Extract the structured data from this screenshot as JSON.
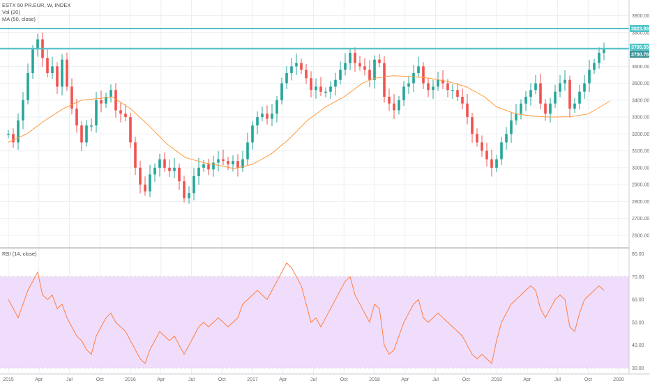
{
  "legend": {
    "title": "ESTX 50 PR.EUR, W, INDEX",
    "vol": "Vol (20)",
    "ma": "MA (50, close)",
    "rsi": "RSI (14, close)"
  },
  "colors": {
    "up": "#26a69a",
    "down": "#ef5350",
    "ma": "#ff9a3c",
    "rsi": "#ff7f3f",
    "hline": "#4fc3c8",
    "rsi_band": "#f0ddfb",
    "grid": "#eceff2"
  },
  "price_levels": {
    "resistance_top": {
      "value": 3823.93,
      "label": "3823.93"
    },
    "resistance_mid": {
      "value": 3705.55,
      "label": "3705.55"
    },
    "last_close": {
      "value": 3700.78,
      "label": "3700.78"
    }
  },
  "chart_data": [
    {
      "type": "candlestick",
      "title": "ESTX 50 PR.EUR, W, INDEX",
      "ylim": [
        2550,
        3960
      ],
      "yticks": [
        "3900.00",
        "3800.00",
        "3700.00",
        "3600.00",
        "3500.00",
        "3400.00",
        "3300.00",
        "3200.00",
        "3100.00",
        "3000.00",
        "2900.00",
        "2800.00",
        "2700.00",
        "2600.00"
      ],
      "xticks": [
        "2015",
        "Apr",
        "Jul",
        "Oct",
        "2016",
        "Apr",
        "Jul",
        "Oct",
        "2017",
        "Apr",
        "Jul",
        "Oct",
        "2018",
        "Apr",
        "Jul",
        "Oct",
        "2019",
        "Apr",
        "Jul",
        "Oct",
        "2020"
      ],
      "x_range": [
        "2015-01",
        "2020-01"
      ],
      "series": [
        {
          "name": "MA (50, close)",
          "points": [
            [
              2015.0,
              3150
            ],
            [
              2015.15,
              3200
            ],
            [
              2015.3,
              3280
            ],
            [
              2015.45,
              3350
            ],
            [
              2015.6,
              3400
            ],
            [
              2015.75,
              3410
            ],
            [
              2015.85,
              3420
            ],
            [
              2016.0,
              3350
            ],
            [
              2016.15,
              3250
            ],
            [
              2016.3,
              3140
            ],
            [
              2016.45,
              3060
            ],
            [
              2016.6,
              3030
            ],
            [
              2016.75,
              3010
            ],
            [
              2016.85,
              2995
            ],
            [
              2017.0,
              3020
            ],
            [
              2017.15,
              3080
            ],
            [
              2017.3,
              3170
            ],
            [
              2017.45,
              3280
            ],
            [
              2017.6,
              3360
            ],
            [
              2017.75,
              3420
            ],
            [
              2017.9,
              3500
            ],
            [
              2018.0,
              3530
            ],
            [
              2018.15,
              3545
            ],
            [
              2018.3,
              3540
            ],
            [
              2018.45,
              3530
            ],
            [
              2018.6,
              3510
            ],
            [
              2018.75,
              3480
            ],
            [
              2018.9,
              3420
            ],
            [
              2019.0,
              3360
            ],
            [
              2019.15,
              3320
            ],
            [
              2019.3,
              3305
            ],
            [
              2019.45,
              3300
            ],
            [
              2019.6,
              3302
            ],
            [
              2019.75,
              3318
            ],
            [
              2019.85,
              3360
            ],
            [
              2019.93,
              3395
            ]
          ]
        }
      ],
      "candles_anchor_close": [
        [
          2015.0,
          3200
        ],
        [
          2015.04,
          3150
        ],
        [
          2015.08,
          3280
        ],
        [
          2015.12,
          3400
        ],
        [
          2015.16,
          3560
        ],
        [
          2015.2,
          3700
        ],
        [
          2015.24,
          3760
        ],
        [
          2015.28,
          3650
        ],
        [
          2015.32,
          3560
        ],
        [
          2015.36,
          3600
        ],
        [
          2015.4,
          3480
        ],
        [
          2015.44,
          3640
        ],
        [
          2015.48,
          3480
        ],
        [
          2015.52,
          3350
        ],
        [
          2015.56,
          3250
        ],
        [
          2015.6,
          3150
        ],
        [
          2015.64,
          3250
        ],
        [
          2015.68,
          3250
        ],
        [
          2015.72,
          3400
        ],
        [
          2015.76,
          3380
        ],
        [
          2015.8,
          3420
        ],
        [
          2015.84,
          3460
        ],
        [
          2015.88,
          3340
        ],
        [
          2015.92,
          3320
        ],
        [
          2015.96,
          3300
        ],
        [
          2016.0,
          3150
        ],
        [
          2016.04,
          3000
        ],
        [
          2016.08,
          2900
        ],
        [
          2016.12,
          2860
        ],
        [
          2016.16,
          2960
        ],
        [
          2016.2,
          3000
        ],
        [
          2016.24,
          3050
        ],
        [
          2016.28,
          3000
        ],
        [
          2016.32,
          2980
        ],
        [
          2016.36,
          3000
        ],
        [
          2016.4,
          2920
        ],
        [
          2016.44,
          2820
        ],
        [
          2016.48,
          2850
        ],
        [
          2016.52,
          2950
        ],
        [
          2016.56,
          3000
        ],
        [
          2016.6,
          3020
        ],
        [
          2016.64,
          2990
        ],
        [
          2016.68,
          3030
        ],
        [
          2016.72,
          3050
        ],
        [
          2016.76,
          3040
        ],
        [
          2016.8,
          3020
        ],
        [
          2016.84,
          3040
        ],
        [
          2016.88,
          3000
        ],
        [
          2016.92,
          3050
        ],
        [
          2016.96,
          3150
        ],
        [
          2017.0,
          3250
        ],
        [
          2017.04,
          3300
        ],
        [
          2017.08,
          3320
        ],
        [
          2017.12,
          3290
        ],
        [
          2017.16,
          3320
        ],
        [
          2017.2,
          3400
        ],
        [
          2017.24,
          3500
        ],
        [
          2017.28,
          3560
        ],
        [
          2017.32,
          3600
        ],
        [
          2017.36,
          3620
        ],
        [
          2017.4,
          3580
        ],
        [
          2017.44,
          3530
        ],
        [
          2017.48,
          3460
        ],
        [
          2017.52,
          3480
        ],
        [
          2017.56,
          3450
        ],
        [
          2017.6,
          3450
        ],
        [
          2017.64,
          3480
        ],
        [
          2017.68,
          3520
        ],
        [
          2017.72,
          3580
        ],
        [
          2017.76,
          3620
        ],
        [
          2017.8,
          3680
        ],
        [
          2017.84,
          3620
        ],
        [
          2017.88,
          3600
        ],
        [
          2017.92,
          3580
        ],
        [
          2017.96,
          3520
        ],
        [
          2018.0,
          3640
        ],
        [
          2018.04,
          3620
        ],
        [
          2018.08,
          3420
        ],
        [
          2018.12,
          3380
        ],
        [
          2018.16,
          3340
        ],
        [
          2018.2,
          3400
        ],
        [
          2018.24,
          3480
        ],
        [
          2018.28,
          3500
        ],
        [
          2018.32,
          3560
        ],
        [
          2018.36,
          3600
        ],
        [
          2018.4,
          3500
        ],
        [
          2018.44,
          3460
        ],
        [
          2018.48,
          3480
        ],
        [
          2018.52,
          3520
        ],
        [
          2018.56,
          3500
        ],
        [
          2018.6,
          3460
        ],
        [
          2018.64,
          3460
        ],
        [
          2018.68,
          3420
        ],
        [
          2018.72,
          3380
        ],
        [
          2018.76,
          3300
        ],
        [
          2018.8,
          3200
        ],
        [
          2018.84,
          3150
        ],
        [
          2018.88,
          3100
        ],
        [
          2018.92,
          3050
        ],
        [
          2018.96,
          3000
        ],
        [
          2019.0,
          3050
        ],
        [
          2019.04,
          3150
        ],
        [
          2019.08,
          3200
        ],
        [
          2019.12,
          3280
        ],
        [
          2019.16,
          3320
        ],
        [
          2019.2,
          3380
        ],
        [
          2019.24,
          3420
        ],
        [
          2019.28,
          3460
        ],
        [
          2019.32,
          3500
        ],
        [
          2019.36,
          3380
        ],
        [
          2019.4,
          3320
        ],
        [
          2019.44,
          3380
        ],
        [
          2019.48,
          3450
        ],
        [
          2019.52,
          3500
        ],
        [
          2019.56,
          3520
        ],
        [
          2019.6,
          3350
        ],
        [
          2019.64,
          3380
        ],
        [
          2019.68,
          3450
        ],
        [
          2019.72,
          3500
        ],
        [
          2019.76,
          3580
        ],
        [
          2019.8,
          3620
        ],
        [
          2019.84,
          3680
        ],
        [
          2019.88,
          3700
        ]
      ]
    },
    {
      "type": "line",
      "title": "RSI (14, close)",
      "ylim": [
        28,
        82
      ],
      "yticks": [
        "80.00",
        "70.00",
        "60.00",
        "50.00",
        "40.00",
        "30.00"
      ],
      "band": [
        30,
        70
      ],
      "series": [
        {
          "name": "RSI (14, close)",
          "points": [
            [
              2015.0,
              60
            ],
            [
              2015.04,
              56
            ],
            [
              2015.08,
              52
            ],
            [
              2015.12,
              58
            ],
            [
              2015.16,
              64
            ],
            [
              2015.2,
              68
            ],
            [
              2015.24,
              72
            ],
            [
              2015.28,
              62
            ],
            [
              2015.32,
              60
            ],
            [
              2015.36,
              62
            ],
            [
              2015.4,
              56
            ],
            [
              2015.44,
              58
            ],
            [
              2015.48,
              52
            ],
            [
              2015.52,
              48
            ],
            [
              2015.56,
              44
            ],
            [
              2015.6,
              42
            ],
            [
              2015.64,
              38
            ],
            [
              2015.68,
              36
            ],
            [
              2015.72,
              44
            ],
            [
              2015.76,
              48
            ],
            [
              2015.8,
              52
            ],
            [
              2015.84,
              54
            ],
            [
              2015.88,
              50
            ],
            [
              2015.92,
              48
            ],
            [
              2015.96,
              46
            ],
            [
              2016.0,
              42
            ],
            [
              2016.04,
              38
            ],
            [
              2016.08,
              34
            ],
            [
              2016.12,
              32
            ],
            [
              2016.16,
              38
            ],
            [
              2016.2,
              42
            ],
            [
              2016.24,
              46
            ],
            [
              2016.28,
              44
            ],
            [
              2016.32,
              42
            ],
            [
              2016.36,
              44
            ],
            [
              2016.4,
              40
            ],
            [
              2016.44,
              36
            ],
            [
              2016.48,
              40
            ],
            [
              2016.52,
              44
            ],
            [
              2016.56,
              48
            ],
            [
              2016.6,
              50
            ],
            [
              2016.64,
              48
            ],
            [
              2016.68,
              50
            ],
            [
              2016.72,
              52
            ],
            [
              2016.76,
              50
            ],
            [
              2016.8,
              48
            ],
            [
              2016.84,
              50
            ],
            [
              2016.88,
              52
            ],
            [
              2016.92,
              58
            ],
            [
              2016.96,
              60
            ],
            [
              2017.0,
              62
            ],
            [
              2017.04,
              64
            ],
            [
              2017.08,
              62
            ],
            [
              2017.12,
              60
            ],
            [
              2017.16,
              64
            ],
            [
              2017.2,
              68
            ],
            [
              2017.24,
              72
            ],
            [
              2017.28,
              76
            ],
            [
              2017.32,
              74
            ],
            [
              2017.36,
              70
            ],
            [
              2017.4,
              66
            ],
            [
              2017.44,
              58
            ],
            [
              2017.48,
              50
            ],
            [
              2017.52,
              52
            ],
            [
              2017.56,
              48
            ],
            [
              2017.6,
              52
            ],
            [
              2017.64,
              56
            ],
            [
              2017.68,
              60
            ],
            [
              2017.72,
              64
            ],
            [
              2017.76,
              68
            ],
            [
              2017.8,
              70
            ],
            [
              2017.84,
              62
            ],
            [
              2017.88,
              58
            ],
            [
              2017.92,
              54
            ],
            [
              2017.96,
              50
            ],
            [
              2018.0,
              58
            ],
            [
              2018.04,
              56
            ],
            [
              2018.08,
              40
            ],
            [
              2018.12,
              36
            ],
            [
              2018.16,
              38
            ],
            [
              2018.2,
              44
            ],
            [
              2018.24,
              50
            ],
            [
              2018.28,
              54
            ],
            [
              2018.32,
              58
            ],
            [
              2018.36,
              60
            ],
            [
              2018.4,
              52
            ],
            [
              2018.44,
              50
            ],
            [
              2018.48,
              52
            ],
            [
              2018.52,
              54
            ],
            [
              2018.56,
              52
            ],
            [
              2018.6,
              50
            ],
            [
              2018.64,
              48
            ],
            [
              2018.68,
              46
            ],
            [
              2018.72,
              44
            ],
            [
              2018.76,
              40
            ],
            [
              2018.8,
              36
            ],
            [
              2018.84,
              34
            ],
            [
              2018.88,
              36
            ],
            [
              2018.92,
              34
            ],
            [
              2018.96,
              32
            ],
            [
              2019.0,
              42
            ],
            [
              2019.04,
              50
            ],
            [
              2019.08,
              54
            ],
            [
              2019.12,
              58
            ],
            [
              2019.16,
              60
            ],
            [
              2019.2,
              62
            ],
            [
              2019.24,
              64
            ],
            [
              2019.28,
              66
            ],
            [
              2019.32,
              64
            ],
            [
              2019.36,
              56
            ],
            [
              2019.4,
              52
            ],
            [
              2019.44,
              56
            ],
            [
              2019.48,
              60
            ],
            [
              2019.52,
              62
            ],
            [
              2019.56,
              60
            ],
            [
              2019.6,
              48
            ],
            [
              2019.64,
              46
            ],
            [
              2019.68,
              54
            ],
            [
              2019.72,
              60
            ],
            [
              2019.76,
              62
            ],
            [
              2019.8,
              64
            ],
            [
              2019.84,
              66
            ],
            [
              2019.88,
              64
            ]
          ]
        }
      ]
    }
  ]
}
